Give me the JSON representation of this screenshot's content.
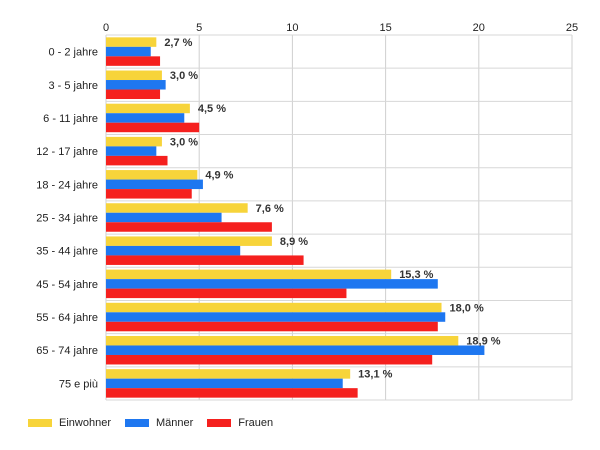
{
  "chart_data": {
    "type": "bar",
    "orientation": "horizontal",
    "categories": [
      "0 - 2 jahre",
      "3 - 5 jahre",
      "6 - 11 jahre",
      "12 - 17 jahre",
      "18 - 24 jahre",
      "25 - 34 jahre",
      "35 - 44 jahre",
      "45 - 54 jahre",
      "55 - 64 jahre",
      "65 - 74 jahre",
      "75 e più"
    ],
    "series": [
      {
        "name": "Einwohner",
        "color": "#f7d43a",
        "values": [
          2.7,
          3.0,
          4.5,
          3.0,
          4.9,
          7.6,
          8.9,
          15.3,
          18.0,
          18.9,
          13.1
        ]
      },
      {
        "name": "Männer",
        "color": "#1e77f0",
        "values": [
          2.4,
          3.2,
          4.2,
          2.7,
          5.2,
          6.2,
          7.2,
          17.8,
          18.2,
          20.3,
          12.7
        ]
      },
      {
        "name": "Frauen",
        "color": "#f5201e",
        "values": [
          2.9,
          2.9,
          5.0,
          3.3,
          4.6,
          8.9,
          10.6,
          12.9,
          17.8,
          17.5,
          13.5
        ]
      }
    ],
    "data_labels": [
      "2,7 %",
      "3,0 %",
      "4,5 %",
      "3,0 %",
      "4,9 %",
      "7,6 %",
      "8,9 %",
      "15,3 %",
      "18,0 %",
      "18,9 %",
      "13,1 %"
    ],
    "xticks": [
      "0",
      "5",
      "10",
      "15",
      "20",
      "25"
    ],
    "xlim": [
      0,
      25
    ],
    "grid": true,
    "legend_position": "bottom-left",
    "title": "",
    "xlabel": "",
    "ylabel": ""
  }
}
